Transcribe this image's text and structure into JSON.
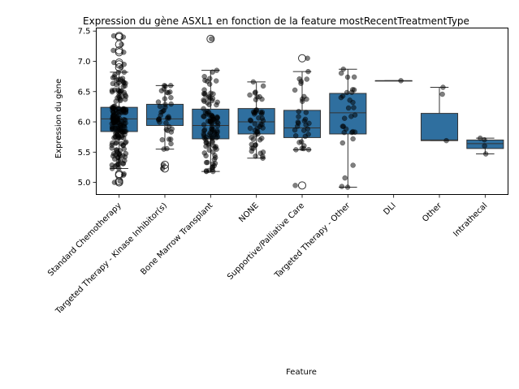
{
  "chart_data": {
    "type": "box",
    "title": "Expression du gène ASXL1 en fonction de la feature mostRecentTreatmentType",
    "xlabel": "Feature",
    "ylabel": "Expression du gène",
    "ylim": [
      4.8,
      7.55
    ],
    "yticks": [
      5.0,
      5.5,
      6.0,
      6.5,
      7.0,
      7.5
    ],
    "grid": false,
    "box_color": "#2f6f9f",
    "point_color": "#000000",
    "categories": [
      "Standard Chemotherapy",
      "Targeted Therapy - Kinase Inhibitor(s)",
      "Bone Marrow Transplant",
      "NONE",
      "Supportive/Palliative Care",
      "Targeted Therapy - Other",
      "DLI",
      "Other",
      "Intrathecal"
    ],
    "boxes": [
      {
        "category": "Standard Chemotherapy",
        "whisker_low": 5.23,
        "q1": 5.84,
        "median": 6.05,
        "q3": 6.24,
        "whisker_high": 6.82,
        "outliers": [
          5.0,
          5.02,
          5.12,
          5.14,
          6.9,
          6.95,
          6.98,
          7.15,
          7.18,
          7.28,
          7.4,
          7.42
        ]
      },
      {
        "category": "Targeted Therapy - Kinase Inhibitor(s)",
        "whisker_low": 5.55,
        "q1": 5.94,
        "median": 6.05,
        "q3": 6.29,
        "whisker_high": 6.6,
        "outliers": [
          5.23,
          5.29
        ]
      },
      {
        "category": "Bone Marrow Transplant",
        "whisker_low": 5.18,
        "q1": 5.72,
        "median": 5.94,
        "q3": 6.21,
        "whisker_high": 6.85,
        "outliers": [
          7.37
        ]
      },
      {
        "category": "NONE",
        "whisker_low": 5.4,
        "q1": 5.8,
        "median": 6.0,
        "q3": 6.22,
        "whisker_high": 6.66,
        "outliers": []
      },
      {
        "category": "Supportive/Palliative Care",
        "whisker_low": 5.54,
        "q1": 5.74,
        "median": 5.9,
        "q3": 6.19,
        "whisker_high": 6.83,
        "outliers": [
          4.95,
          7.05
        ]
      },
      {
        "category": "Targeted Therapy - Other",
        "whisker_low": 4.92,
        "q1": 5.8,
        "median": 6.15,
        "q3": 6.47,
        "whisker_high": 6.87,
        "outliers": []
      },
      {
        "category": "DLI",
        "whisker_low": 6.68,
        "q1": 6.68,
        "median": 6.68,
        "q3": 6.68,
        "whisker_high": 6.68,
        "outliers": []
      },
      {
        "category": "Other",
        "whisker_low": 5.69,
        "q1": 5.69,
        "median": 5.7,
        "q3": 6.14,
        "whisker_high": 6.57,
        "outliers": []
      },
      {
        "category": "Intrathecal",
        "whisker_low": 5.47,
        "q1": 5.56,
        "median": 5.64,
        "q3": 5.7,
        "whisker_high": 5.73,
        "outliers": []
      }
    ],
    "points": [
      {
        "category": "Standard Chemotherapy",
        "n": 190
      },
      {
        "category": "Targeted Therapy - Kinase Inhibitor(s)",
        "n": 40
      },
      {
        "category": "Bone Marrow Transplant",
        "n": 110
      },
      {
        "category": "NONE",
        "n": 50
      },
      {
        "category": "Supportive/Palliative Care",
        "n": 35
      },
      {
        "category": "Targeted Therapy - Other",
        "n": 30
      },
      {
        "category": "DLI",
        "n": 1
      },
      {
        "category": "Other",
        "n": 3
      },
      {
        "category": "Intrathecal",
        "n": 4
      }
    ]
  }
}
